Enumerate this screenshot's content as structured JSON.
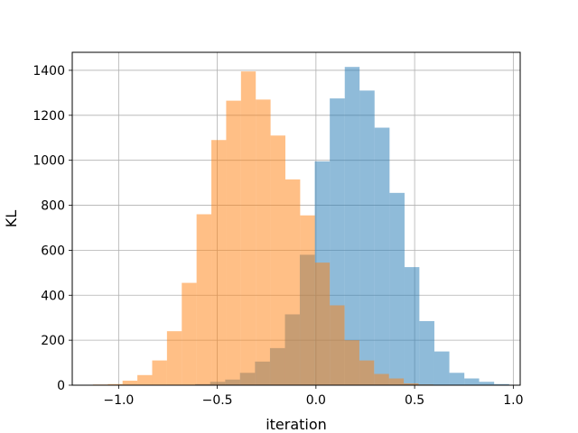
{
  "chart_data": {
    "type": "histogram",
    "title": "",
    "xlabel": "iteration",
    "ylabel": "KL",
    "xlim": [
      -1.235,
      1.035
    ],
    "ylim": [
      0,
      1480
    ],
    "grid": true,
    "xticks": [
      -1.0,
      -0.5,
      0.0,
      0.5,
      1.0
    ],
    "xtick_labels": [
      "−1.0",
      "−0.5",
      "0.0",
      "0.5",
      "1.0"
    ],
    "yticks": [
      0,
      200,
      400,
      600,
      800,
      1000,
      1200,
      1400
    ],
    "ytick_labels": [
      "0",
      "200",
      "400",
      "600",
      "800",
      "1000",
      "1200",
      "1400"
    ],
    "series": [
      {
        "color": "#1f77b4",
        "opacity": 0.5,
        "bins": [
          {
            "x0": -0.612,
            "x1": -0.536,
            "y": 5
          },
          {
            "x0": -0.536,
            "x1": -0.46,
            "y": 15
          },
          {
            "x0": -0.46,
            "x1": -0.385,
            "y": 25
          },
          {
            "x0": -0.385,
            "x1": -0.309,
            "y": 55
          },
          {
            "x0": -0.309,
            "x1": -0.233,
            "y": 105
          },
          {
            "x0": -0.233,
            "x1": -0.157,
            "y": 165
          },
          {
            "x0": -0.157,
            "x1": -0.082,
            "y": 315
          },
          {
            "x0": -0.082,
            "x1": -0.006,
            "y": 580
          },
          {
            "x0": -0.006,
            "x1": 0.07,
            "y": 995
          },
          {
            "x0": 0.07,
            "x1": 0.146,
            "y": 1275
          },
          {
            "x0": 0.146,
            "x1": 0.221,
            "y": 1415
          },
          {
            "x0": 0.221,
            "x1": 0.297,
            "y": 1310
          },
          {
            "x0": 0.297,
            "x1": 0.373,
            "y": 1145
          },
          {
            "x0": 0.373,
            "x1": 0.449,
            "y": 855
          },
          {
            "x0": 0.449,
            "x1": 0.524,
            "y": 525
          },
          {
            "x0": 0.524,
            "x1": 0.6,
            "y": 285
          },
          {
            "x0": 0.6,
            "x1": 0.676,
            "y": 150
          },
          {
            "x0": 0.676,
            "x1": 0.752,
            "y": 55
          },
          {
            "x0": 0.752,
            "x1": 0.827,
            "y": 30
          },
          {
            "x0": 0.827,
            "x1": 0.903,
            "y": 15
          },
          {
            "x0": 0.903,
            "x1": 0.979,
            "y": 5
          }
        ]
      },
      {
        "color": "#ff7f0e",
        "opacity": 0.5,
        "bins": [
          {
            "x0": -1.13,
            "x1": -1.055,
            "y": 3
          },
          {
            "x0": -1.055,
            "x1": -0.98,
            "y": 5
          },
          {
            "x0": -0.98,
            "x1": -0.905,
            "y": 20
          },
          {
            "x0": -0.905,
            "x1": -0.83,
            "y": 45
          },
          {
            "x0": -0.83,
            "x1": -0.755,
            "y": 110
          },
          {
            "x0": -0.755,
            "x1": -0.68,
            "y": 240
          },
          {
            "x0": -0.68,
            "x1": -0.605,
            "y": 455
          },
          {
            "x0": -0.605,
            "x1": -0.53,
            "y": 760
          },
          {
            "x0": -0.53,
            "x1": -0.455,
            "y": 1090
          },
          {
            "x0": -0.455,
            "x1": -0.38,
            "y": 1265
          },
          {
            "x0": -0.38,
            "x1": -0.305,
            "y": 1395
          },
          {
            "x0": -0.305,
            "x1": -0.23,
            "y": 1270
          },
          {
            "x0": -0.23,
            "x1": -0.155,
            "y": 1110
          },
          {
            "x0": -0.155,
            "x1": -0.08,
            "y": 915
          },
          {
            "x0": -0.08,
            "x1": -0.005,
            "y": 755
          },
          {
            "x0": -0.005,
            "x1": 0.07,
            "y": 545
          },
          {
            "x0": 0.07,
            "x1": 0.145,
            "y": 355
          },
          {
            "x0": 0.145,
            "x1": 0.22,
            "y": 200
          },
          {
            "x0": 0.22,
            "x1": 0.295,
            "y": 110
          },
          {
            "x0": 0.295,
            "x1": 0.37,
            "y": 50
          },
          {
            "x0": 0.37,
            "x1": 0.445,
            "y": 30
          },
          {
            "x0": 0.445,
            "x1": 0.52,
            "y": 8
          },
          {
            "x0": 0.52,
            "x1": 0.595,
            "y": 3
          }
        ]
      }
    ]
  }
}
